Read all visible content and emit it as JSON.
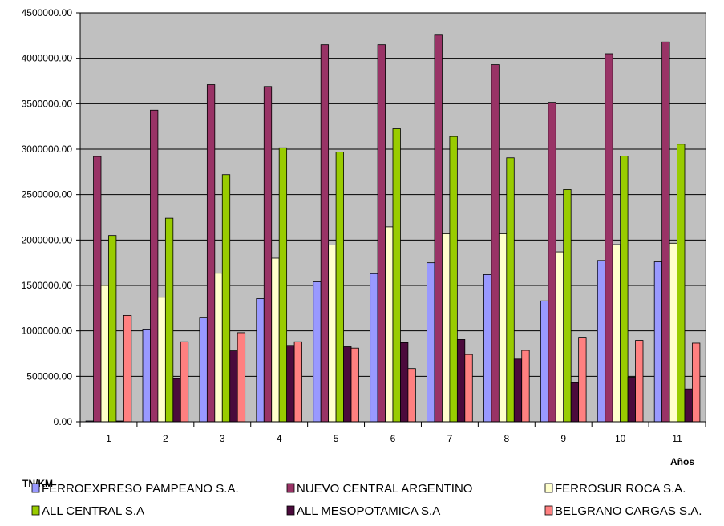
{
  "chart_data": {
    "type": "bar",
    "title": "",
    "xlabel": "Años",
    "ylabel": "TN/KM",
    "ylim": [
      0,
      4500000
    ],
    "y_ticks": [
      "0.00",
      "500000.00",
      "1000000.00",
      "1500000.00",
      "2000000.00",
      "2500000.00",
      "3000000.00",
      "3500000.00",
      "4000000.00",
      "4500000.00"
    ],
    "categories": [
      "1",
      "2",
      "3",
      "4",
      "5",
      "6",
      "7",
      "8",
      "9",
      "10",
      "11"
    ],
    "plot_background": "#c0c0c0",
    "grid": true,
    "legend_position": "bottom",
    "series": [
      {
        "name": "FERROEXPRESO PAMPEANO S.A.",
        "color": "#9999ff",
        "values": [
          0,
          1020000,
          1150000,
          1355000,
          1540000,
          1630000,
          1750000,
          1620000,
          1330000,
          1775000,
          1760000
        ]
      },
      {
        "name": "NUEVO CENTRAL ARGENTINO",
        "color": "#993366",
        "values": [
          2920000,
          3430000,
          3710000,
          3690000,
          4150000,
          4150000,
          4255000,
          3930000,
          3515000,
          4050000,
          4180000
        ]
      },
      {
        "name": "FERROSUR ROCA S.A.",
        "color": "#ffffcc",
        "values": [
          1500000,
          1370000,
          1635000,
          1800000,
          1945000,
          2145000,
          2070000,
          2070000,
          1870000,
          1950000,
          1965000
        ]
      },
      {
        "name": "ALL CENTRAL S.A",
        "color": "#99cc00",
        "values": [
          2050000,
          2240000,
          2720000,
          3015000,
          2970000,
          3225000,
          3140000,
          2905000,
          2555000,
          2925000,
          3055000
        ]
      },
      {
        "name": "ALL MESOPOTAMICA S.A",
        "color": "#4b0a3c",
        "values": [
          0,
          475000,
          780000,
          840000,
          825000,
          870000,
          905000,
          690000,
          430000,
          490000,
          360000
        ]
      },
      {
        "name": "BELGRANO CARGAS S.A.",
        "color": "#ff8080",
        "values": [
          1170000,
          880000,
          980000,
          880000,
          810000,
          585000,
          740000,
          785000,
          930000,
          895000,
          865000
        ]
      }
    ]
  }
}
